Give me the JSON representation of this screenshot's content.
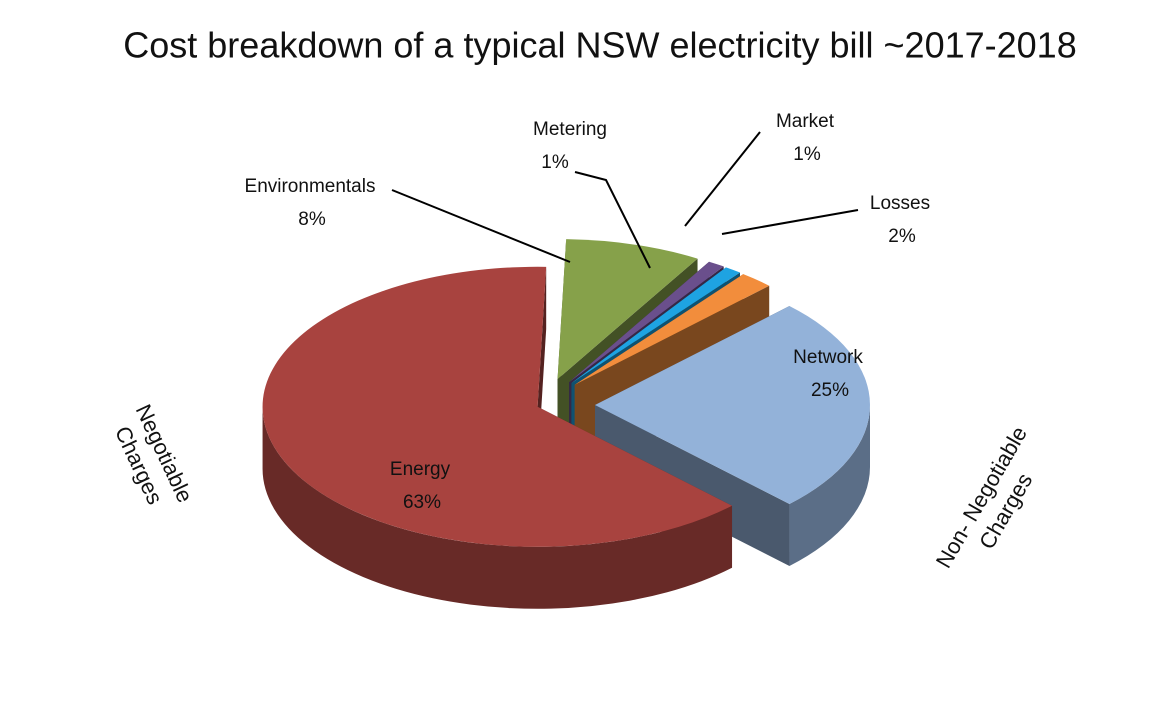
{
  "chart_data": {
    "type": "pie3d",
    "title": "Cost breakdown  of a typical  NSW electricity bill ~2017-2018",
    "categories": [
      "Energy",
      "Environmentals",
      "Metering",
      "Market",
      "Losses",
      "Network"
    ],
    "values": [
      63,
      8,
      1,
      1,
      2,
      25
    ],
    "value_labels": [
      "63%",
      "8%",
      "1%",
      "1%",
      "2%",
      "25%"
    ],
    "colors": [
      "#a8433f",
      "#86a14a",
      "#6a4f8c",
      "#1ea3e2",
      "#f28d3c",
      "#93b2d9"
    ],
    "annotations": [
      [
        "Negotiable",
        "Charges"
      ],
      [
        "Non- Negotiable",
        "Charges"
      ]
    ]
  }
}
